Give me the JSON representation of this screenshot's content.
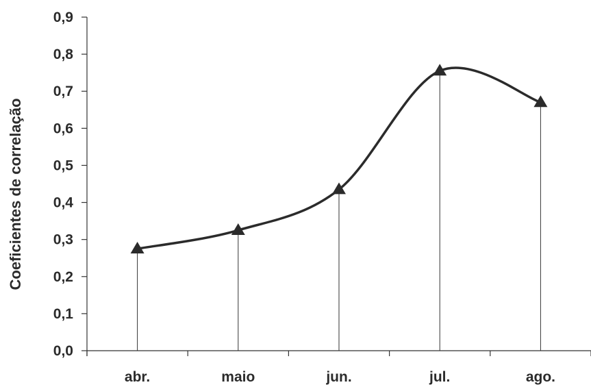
{
  "chart_data": {
    "type": "line",
    "title": "",
    "xlabel": "",
    "ylabel": "Coeficientes de correlação",
    "categories": [
      "abr.",
      "maio",
      "jun.",
      "jul.",
      "ago."
    ],
    "series": [
      {
        "values": [
          0.275,
          0.325,
          0.435,
          0.755,
          0.67
        ],
        "marker": "triangle",
        "smooth": true,
        "drop_lines": true
      }
    ],
    "yticks": [
      "0,0",
      "0,1",
      "0,2",
      "0,3",
      "0,4",
      "0,5",
      "0,6",
      "0,7",
      "0,8",
      "0,9"
    ],
    "ylim": [
      0,
      0.9
    ],
    "grid": false,
    "colors": {
      "line": "#2b2b2b",
      "axis": "#333333",
      "text": "#2b2b2b"
    }
  }
}
